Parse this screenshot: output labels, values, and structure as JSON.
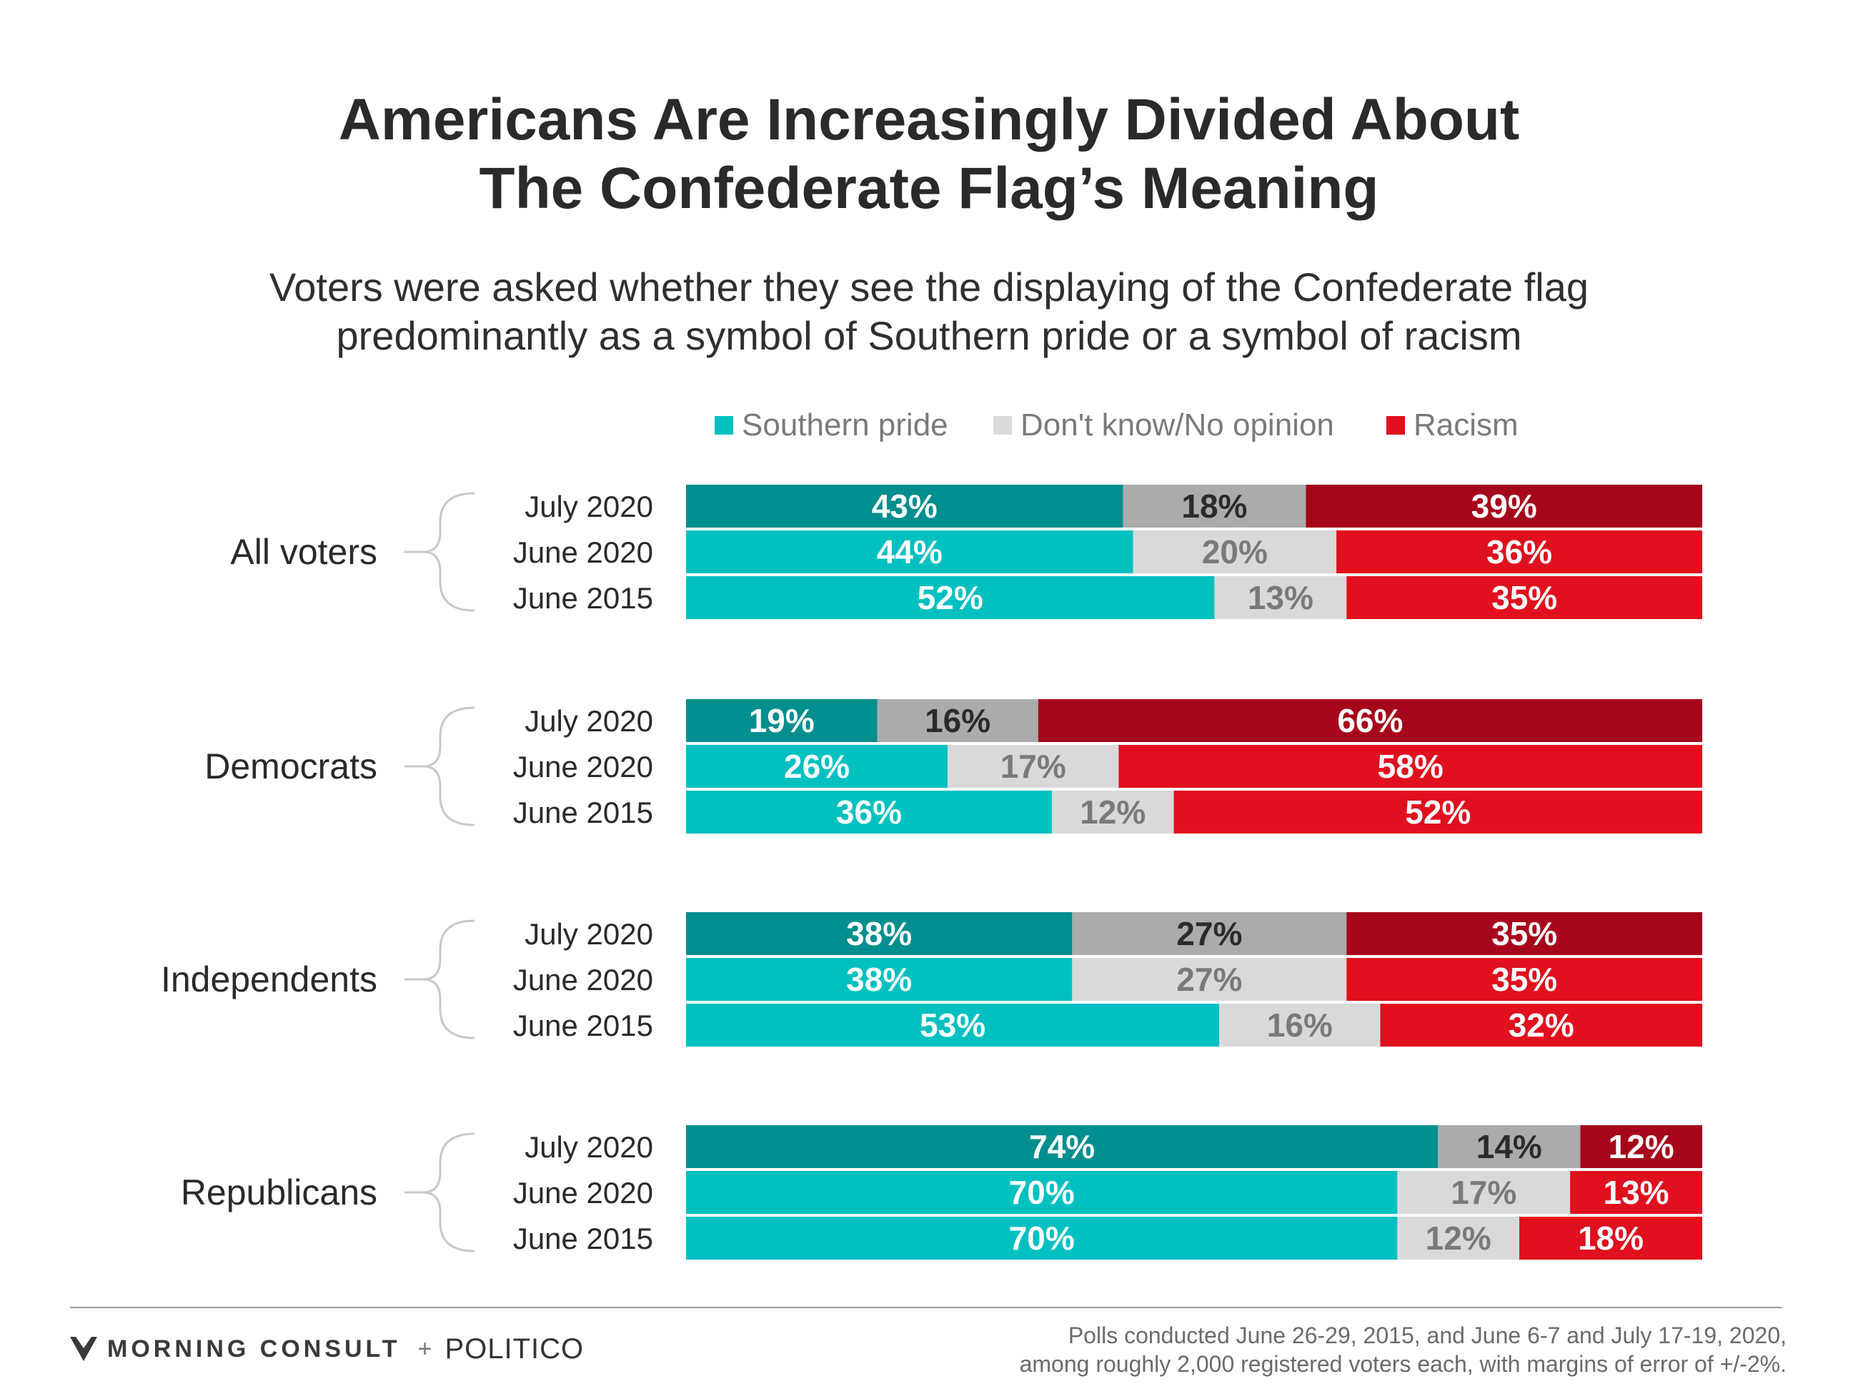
{
  "title_lines": [
    "Americans Are Increasingly Divided About",
    "The Confederate Flag’s Meaning"
  ],
  "subtitle_lines": [
    "Voters were asked whether they see the displaying of the Confederate flag",
    "predominantly as a symbol of Southern pride or a symbol of racism"
  ],
  "legend": [
    {
      "label": "Southern pride",
      "color": "#00c0c0"
    },
    {
      "label": "Don't know/No opinion",
      "color": "#d9d9d9"
    },
    {
      "label": "Racism",
      "color": "#e0101e"
    }
  ],
  "colors": {
    "pride_latest": "#008e8e",
    "pride": "#00c0c0",
    "dk_latest": "#ababab",
    "dk": "#d9d9d9",
    "racism_latest": "#a6061b",
    "racism": "#e0101e",
    "label_dark": "#2b2b2b",
    "label_gray": "#7a7a7a",
    "label_white": "#ffffff"
  },
  "chart_data": {
    "type": "bar",
    "stacked": true,
    "orientation": "horizontal",
    "series_names": [
      "Southern pride",
      "Don't know/No opinion",
      "Racism"
    ],
    "groups": [
      {
        "name": "All voters",
        "rows": [
          {
            "label": "July 2020",
            "values": [
              43,
              18,
              39
            ]
          },
          {
            "label": "June 2020",
            "values": [
              44,
              20,
              36
            ]
          },
          {
            "label": "June 2015",
            "values": [
              52,
              13,
              35
            ]
          }
        ]
      },
      {
        "name": "Democrats",
        "rows": [
          {
            "label": "July 2020",
            "values": [
              19,
              16,
              66
            ]
          },
          {
            "label": "June 2020",
            "values": [
              26,
              17,
              58
            ]
          },
          {
            "label": "June 2015",
            "values": [
              36,
              12,
              52
            ]
          }
        ]
      },
      {
        "name": "Independents",
        "rows": [
          {
            "label": "July 2020",
            "values": [
              38,
              27,
              35
            ]
          },
          {
            "label": "June 2020",
            "values": [
              38,
              27,
              35
            ]
          },
          {
            "label": "June 2015",
            "values": [
              53,
              16,
              32
            ]
          }
        ]
      },
      {
        "name": "Republicans",
        "rows": [
          {
            "label": "July 2020",
            "values": [
              74,
              14,
              12
            ]
          },
          {
            "label": "June 2020",
            "values": [
              70,
              17,
              13
            ]
          },
          {
            "label": "June 2015",
            "values": [
              70,
              12,
              18
            ]
          }
        ]
      }
    ],
    "value_suffix": "%"
  },
  "footer": {
    "brand1": "MORNING CONSULT",
    "plus": "+",
    "brand2": "POLITICO",
    "note_lines": [
      "Polls conducted June 26-29, 2015, and June 6-7 and July 17-19, 2020,",
      "among roughly 2,000 registered voters each, with margins of error of +/-2%."
    ]
  }
}
